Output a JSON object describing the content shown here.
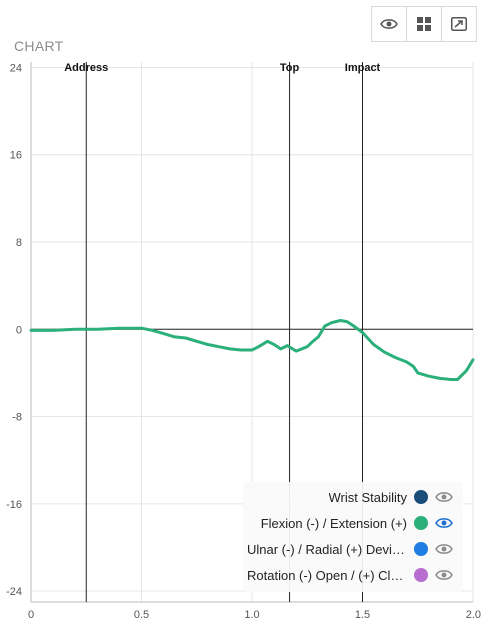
{
  "toolbar": {
    "icons": [
      "eye-icon",
      "grid-icon",
      "expand-icon"
    ]
  },
  "chart_title": "CHART",
  "chart_data": {
    "type": "line",
    "xlim": [
      0,
      2.0
    ],
    "ylim": [
      -25,
      24.5
    ],
    "x_ticks": [
      0,
      0.5,
      1.0,
      1.5,
      2.0
    ],
    "x_tick_labels": [
      "0",
      "0.5",
      "1.0",
      "1.5",
      "2.0"
    ],
    "y_ticks": [
      24,
      16,
      8,
      0,
      -8,
      -16,
      -24
    ],
    "y_tick_labels": [
      "24",
      "16",
      "8",
      "0",
      "-8",
      "-16",
      "-24"
    ],
    "grid": true,
    "markers": [
      {
        "label": "Address",
        "x": 0.25
      },
      {
        "label": "Top",
        "x": 1.17
      },
      {
        "label": "Impact",
        "x": 1.5
      }
    ],
    "series": [
      {
        "name": "Flexion (-) / Extension (+)",
        "color": "#2bb07a",
        "x": [
          0,
          0.1,
          0.2,
          0.3,
          0.4,
          0.5,
          0.55,
          0.6,
          0.65,
          0.7,
          0.75,
          0.8,
          0.85,
          0.9,
          0.95,
          1.0,
          1.03,
          1.07,
          1.1,
          1.13,
          1.16,
          1.2,
          1.25,
          1.27,
          1.3,
          1.33,
          1.36,
          1.4,
          1.43,
          1.46,
          1.5,
          1.55,
          1.6,
          1.65,
          1.7,
          1.73,
          1.75,
          1.8,
          1.85,
          1.9,
          1.93,
          1.97,
          2.0
        ],
        "y": [
          -0.1,
          -0.1,
          0.0,
          0.0,
          0.1,
          0.1,
          -0.1,
          -0.4,
          -0.7,
          -0.8,
          -1.1,
          -1.4,
          -1.6,
          -1.8,
          -1.9,
          -1.9,
          -1.6,
          -1.1,
          -1.4,
          -1.8,
          -1.5,
          -2.0,
          -1.6,
          -1.2,
          -0.7,
          0.3,
          0.6,
          0.8,
          0.7,
          0.3,
          -0.3,
          -1.4,
          -2.1,
          -2.6,
          -3.0,
          -3.4,
          -4.0,
          -4.3,
          -4.5,
          -4.6,
          -4.6,
          -3.8,
          -2.8
        ]
      }
    ],
    "legend_position": "bottom-right",
    "legend": [
      {
        "label": "Wrist Stability",
        "color": "#1a4e7a",
        "visible": false
      },
      {
        "label": "Flexion (-) / Extension (+)",
        "color": "#2bb07a",
        "visible": true
      },
      {
        "label": "Ulnar (-) / Radial (+) Deviation",
        "color": "#1e7de0",
        "visible": false
      },
      {
        "label": "Rotation (-) Open / (+) Closed",
        "color": "#b86ed0",
        "visible": false
      }
    ]
  }
}
